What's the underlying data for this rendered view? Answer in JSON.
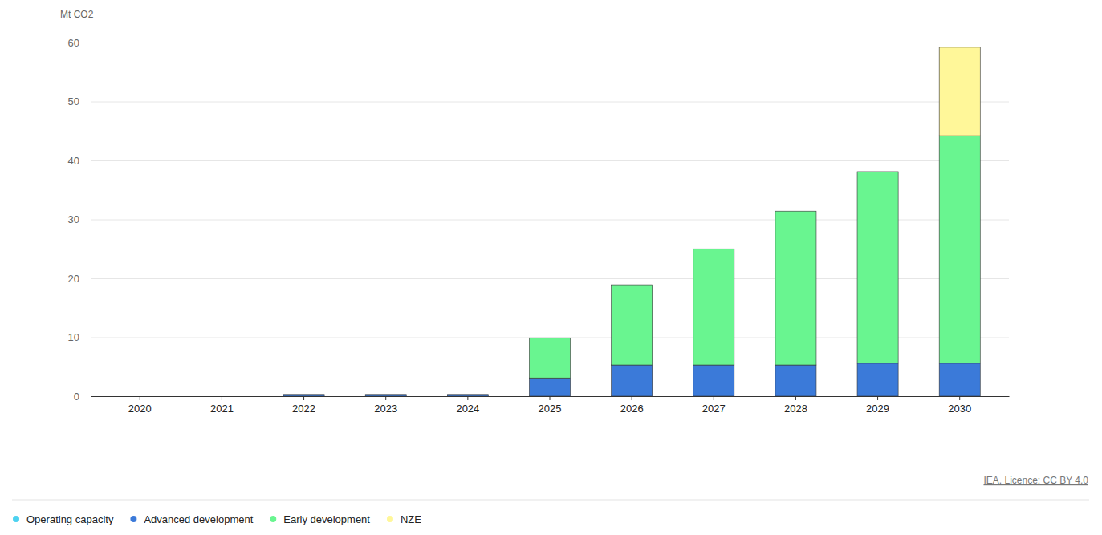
{
  "chart_data": {
    "type": "bar",
    "stacked": true,
    "grid": true,
    "legend": "bottom",
    "y_label": "Mt CO2",
    "source": "IEA. Licence: CC BY 4.0",
    "categories": [
      "2020",
      "2021",
      "2022",
      "2023",
      "2024",
      "2025",
      "2026",
      "2027",
      "2028",
      "2029",
      "2030"
    ],
    "series": [
      {
        "name": "Operating capacity",
        "color": "#4dd2f0",
        "values": [
          0,
          0,
          0,
          0,
          0,
          0,
          0,
          0,
          0,
          0,
          0
        ]
      },
      {
        "name": "Advanced development",
        "color": "#3b7ad9",
        "values": [
          0,
          0,
          0.3,
          0.3,
          0.3,
          3.1,
          5.3,
          5.3,
          5.3,
          5.6,
          5.6
        ]
      },
      {
        "name": "Early development",
        "color": "#69f590",
        "values": [
          0,
          0,
          0,
          0,
          0,
          6.8,
          13.6,
          19.7,
          26.1,
          32.5,
          38.6
        ]
      },
      {
        "name": "NZE",
        "color": "#fff799",
        "values": [
          0,
          0,
          0,
          0,
          0,
          0,
          0,
          0,
          0,
          0,
          15.0
        ]
      }
    ],
    "ylim": [
      0,
      60
    ],
    "yticks": [
      0,
      10,
      20,
      30,
      40,
      50,
      60
    ]
  }
}
